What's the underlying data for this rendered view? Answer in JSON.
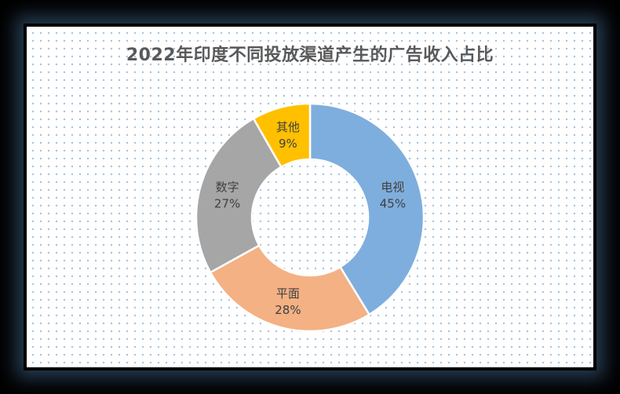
{
  "chart_data": {
    "type": "pie",
    "style": "donut",
    "title": "2022年印度不同投放渠道产生的广告收入占比",
    "legend": "none",
    "slices": [
      {
        "label": "电视",
        "value": 45,
        "value_label": "45%",
        "color": "#7eaedd"
      },
      {
        "label": "平面",
        "value": 28,
        "value_label": "28%",
        "color": "#f4b183"
      },
      {
        "label": "数字",
        "value": 27,
        "value_label": "27%",
        "color": "#a6a6a6"
      },
      {
        "label": "其他",
        "value": 9,
        "value_label": "9%",
        "color": "#ffc000"
      }
    ]
  }
}
